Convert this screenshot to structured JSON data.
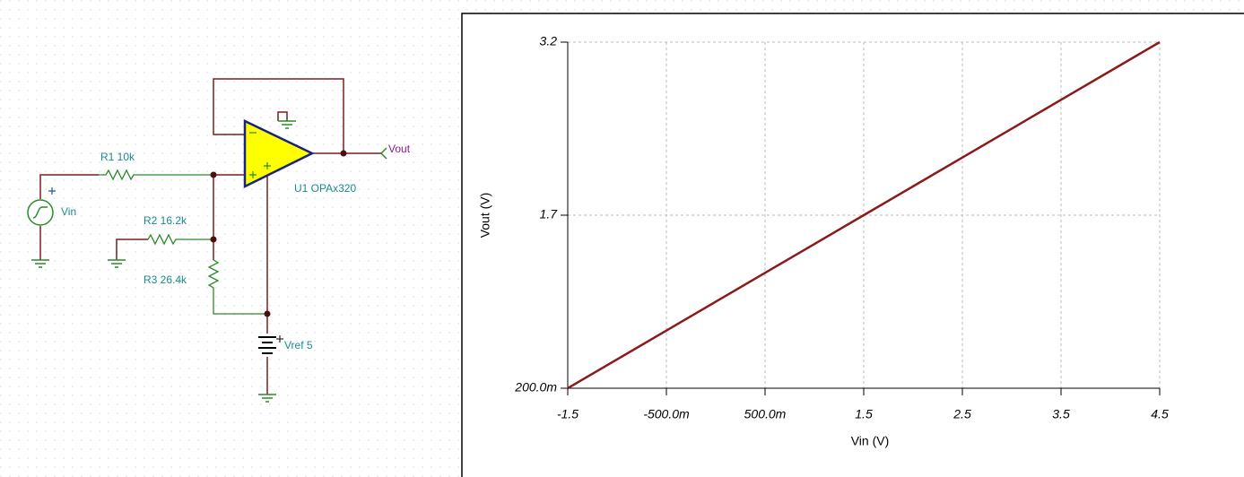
{
  "schematic": {
    "labels": {
      "r1": "R1 10k",
      "vin": "Vin",
      "r2": "R2 16.2k",
      "r3": "R3 26.4k",
      "u1": "U1 OPAx320",
      "vout": "Vout",
      "vref": "Vref 5"
    }
  },
  "chart_data": {
    "type": "line",
    "x_label": "Vin (V)",
    "y_label": "Vout (V)",
    "x": [
      -1.5,
      -0.5,
      0.5,
      1.5,
      2.5,
      3.5,
      4.5
    ],
    "series": [
      {
        "color": "#8b1a1a",
        "values": [
          0.2,
          0.7,
          1.2,
          1.7,
          2.2,
          2.7,
          3.2
        ]
      }
    ],
    "xlim": [
      -1.5,
      4.5
    ],
    "ylim": [
      0.2,
      3.2
    ],
    "xticks": [
      -1.5,
      {
        "value": -0.5,
        "label": "-500.0m"
      },
      {
        "value": 0.5,
        "label": "500.0m"
      },
      1.5,
      2.5,
      3.5,
      4.5
    ],
    "yticks": [
      {
        "value": 0.2,
        "label": "200.0m"
      },
      1.7,
      3.2
    ],
    "grid": true
  }
}
